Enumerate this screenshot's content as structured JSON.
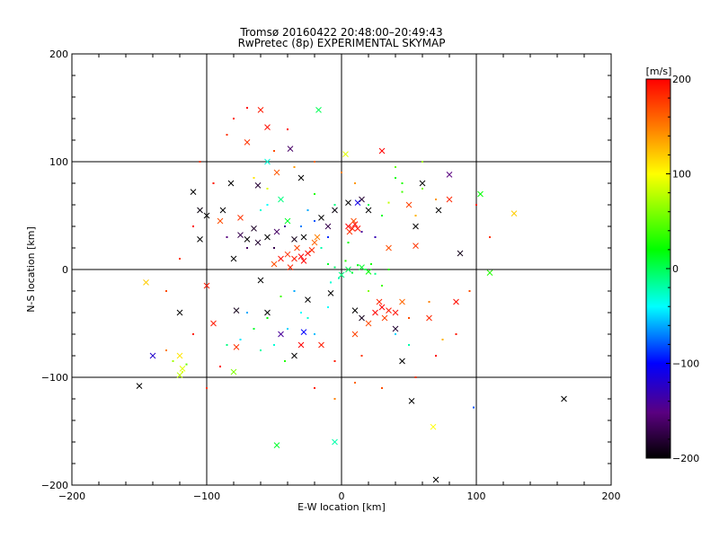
{
  "chart_data": {
    "type": "scatter",
    "title": "Tromsø 20160422 20:48:00–20:49:43",
    "subtitle": "RwPretec (8p) EXPERIMENTAL SKYMAP",
    "xlabel": "E-W location [km]",
    "ylabel": "N-S location [km]",
    "xlim": [
      -200,
      200
    ],
    "ylim": [
      -200,
      200
    ],
    "xticks": [
      "−200",
      "−100",
      "0",
      "100",
      "200"
    ],
    "yticks": [
      "−200",
      "−100",
      "0",
      "100",
      "200"
    ],
    "grid": true,
    "colorbar": {
      "label": "[m/s]",
      "range": [
        -200,
        200
      ],
      "ticks": [
        "−200",
        "−100",
        "0",
        "100",
        "200"
      ]
    },
    "points": [
      {
        "x": 5,
        "y": 40,
        "v": 200,
        "m": "x"
      },
      {
        "x": 8,
        "y": 38,
        "v": 190,
        "m": "x"
      },
      {
        "x": 10,
        "y": 42,
        "v": 200,
        "m": "x"
      },
      {
        "x": 6,
        "y": 35,
        "v": 180,
        "m": "x"
      },
      {
        "x": 12,
        "y": 38,
        "v": 195,
        "m": "x"
      },
      {
        "x": 9,
        "y": 45,
        "v": 170,
        "m": "x"
      },
      {
        "x": -25,
        "y": 15,
        "v": 195,
        "m": "x"
      },
      {
        "x": -30,
        "y": 12,
        "v": 200,
        "m": "x"
      },
      {
        "x": -22,
        "y": 18,
        "v": 185,
        "m": "x"
      },
      {
        "x": -35,
        "y": 10,
        "v": 190,
        "m": "x"
      },
      {
        "x": -28,
        "y": 8,
        "v": 200,
        "m": "x"
      },
      {
        "x": -40,
        "y": 14,
        "v": 180,
        "m": "x"
      },
      {
        "x": -45,
        "y": 10,
        "v": 195,
        "m": "x"
      },
      {
        "x": -33,
        "y": 20,
        "v": 175,
        "m": "x"
      },
      {
        "x": -20,
        "y": 25,
        "v": 160,
        "m": "x"
      },
      {
        "x": -18,
        "y": 30,
        "v": 150,
        "m": "x"
      },
      {
        "x": -50,
        "y": 5,
        "v": 170,
        "m": "x"
      },
      {
        "x": -38,
        "y": 2,
        "v": 185,
        "m": "x"
      },
      {
        "x": 30,
        "y": -35,
        "v": 200,
        "m": "x"
      },
      {
        "x": 35,
        "y": -38,
        "v": 190,
        "m": "x"
      },
      {
        "x": 28,
        "y": -30,
        "v": 185,
        "m": "x"
      },
      {
        "x": 40,
        "y": -40,
        "v": 195,
        "m": "x"
      },
      {
        "x": 32,
        "y": -45,
        "v": 175,
        "m": "x"
      },
      {
        "x": 25,
        "y": -40,
        "v": 200,
        "m": "x"
      },
      {
        "x": 45,
        "y": -30,
        "v": 160,
        "m": "x"
      },
      {
        "x": 20,
        "y": -50,
        "v": 170,
        "m": "x"
      },
      {
        "x": 15,
        "y": -45,
        "v": -190,
        "m": "x"
      },
      {
        "x": 10,
        "y": -38,
        "v": -200,
        "m": "x"
      },
      {
        "x": 40,
        "y": -55,
        "v": -180,
        "m": "x"
      },
      {
        "x": 45,
        "y": -85,
        "v": -200,
        "m": "x"
      },
      {
        "x": -28,
        "y": 30,
        "v": -200,
        "m": "x"
      },
      {
        "x": -35,
        "y": 28,
        "v": -190,
        "m": "x"
      },
      {
        "x": -55,
        "y": 30,
        "v": -200,
        "m": "x"
      },
      {
        "x": -62,
        "y": 25,
        "v": -180,
        "m": "x"
      },
      {
        "x": -70,
        "y": 28,
        "v": -200,
        "m": "x"
      },
      {
        "x": -75,
        "y": 32,
        "v": -170,
        "m": "x"
      },
      {
        "x": -65,
        "y": 38,
        "v": -185,
        "m": "x"
      },
      {
        "x": -48,
        "y": 35,
        "v": -160,
        "m": "x"
      },
      {
        "x": -80,
        "y": 10,
        "v": -200,
        "m": "x"
      },
      {
        "x": -100,
        "y": 50,
        "v": -200,
        "m": "x"
      },
      {
        "x": -110,
        "y": 72,
        "v": -200,
        "m": "x"
      },
      {
        "x": -105,
        "y": 55,
        "v": -195,
        "m": "x"
      },
      {
        "x": -105,
        "y": 28,
        "v": -200,
        "m": "x"
      },
      {
        "x": -82,
        "y": 80,
        "v": -200,
        "m": "x"
      },
      {
        "x": -62,
        "y": 78,
        "v": -180,
        "m": "x"
      },
      {
        "x": -30,
        "y": 85,
        "v": -200,
        "m": "x"
      },
      {
        "x": -38,
        "y": 112,
        "v": -160,
        "m": "x"
      },
      {
        "x": -150,
        "y": -108,
        "v": -200,
        "m": "x"
      },
      {
        "x": -120,
        "y": -40,
        "v": -200,
        "m": "x"
      },
      {
        "x": -78,
        "y": -38,
        "v": -190,
        "m": "x"
      },
      {
        "x": 52,
        "y": -122,
        "v": -200,
        "m": "x"
      },
      {
        "x": 165,
        "y": -120,
        "v": -200,
        "m": "x"
      },
      {
        "x": 70,
        "y": -195,
        "v": -200,
        "m": "x"
      },
      {
        "x": 72,
        "y": 55,
        "v": -200,
        "m": "x"
      },
      {
        "x": 80,
        "y": 88,
        "v": -150,
        "m": "x"
      },
      {
        "x": 88,
        "y": 15,
        "v": -190,
        "m": "x"
      },
      {
        "x": 5,
        "y": 62,
        "v": -200,
        "m": "x"
      },
      {
        "x": 20,
        "y": 55,
        "v": -200,
        "m": "x"
      },
      {
        "x": 15,
        "y": 65,
        "v": -180,
        "m": "x"
      },
      {
        "x": -10,
        "y": 40,
        "v": -170,
        "m": "x"
      },
      {
        "x": -15,
        "y": 48,
        "v": -200,
        "m": "x"
      },
      {
        "x": -5,
        "y": 55,
        "v": -195,
        "m": "x"
      },
      {
        "x": -35,
        "y": -80,
        "v": -200,
        "m": "x"
      },
      {
        "x": -55,
        "y": -40,
        "v": -200,
        "m": "x"
      },
      {
        "x": -45,
        "y": -60,
        "v": -140,
        "m": "x"
      },
      {
        "x": -140,
        "y": -80,
        "v": -120,
        "m": "x"
      },
      {
        "x": -28,
        "y": -58,
        "v": -100,
        "m": "x"
      },
      {
        "x": 12,
        "y": 62,
        "v": -110,
        "m": "x"
      },
      {
        "x": -60,
        "y": 148,
        "v": 190,
        "m": "x"
      },
      {
        "x": -70,
        "y": 118,
        "v": 180,
        "m": "x"
      },
      {
        "x": -55,
        "y": 132,
        "v": 195,
        "m": "x"
      },
      {
        "x": 30,
        "y": 110,
        "v": 200,
        "m": "x"
      },
      {
        "x": -120,
        "y": -80,
        "v": 110,
        "m": "x"
      },
      {
        "x": -118,
        "y": -92,
        "v": 90,
        "m": "x"
      },
      {
        "x": -145,
        "y": -12,
        "v": 120,
        "m": "x"
      },
      {
        "x": 128,
        "y": 52,
        "v": 120,
        "m": "x"
      },
      {
        "x": 68,
        "y": -146,
        "v": 100,
        "m": "x"
      },
      {
        "x": 3,
        "y": 107,
        "v": 90,
        "m": "x"
      },
      {
        "x": -120,
        "y": -98,
        "v": 80,
        "m": "x"
      },
      {
        "x": -80,
        "y": -95,
        "v": 60,
        "m": "x"
      },
      {
        "x": -17,
        "y": 148,
        "v": 0,
        "m": "x"
      },
      {
        "x": -48,
        "y": -163,
        "v": 10,
        "m": "x"
      },
      {
        "x": 103,
        "y": 70,
        "v": 20,
        "m": "x"
      },
      {
        "x": 110,
        "y": -3,
        "v": 30,
        "m": "x"
      },
      {
        "x": -5,
        "y": -160,
        "v": -20,
        "m": "x"
      },
      {
        "x": 5,
        "y": 0,
        "v": 0,
        "m": "x"
      },
      {
        "x": 15,
        "y": 2,
        "v": 10,
        "m": "x"
      },
      {
        "x": 20,
        "y": -2,
        "v": 20,
        "m": "x"
      },
      {
        "x": 0,
        "y": -5,
        "v": -10,
        "m": "x"
      },
      {
        "x": -40,
        "y": 45,
        "v": 10,
        "m": "x"
      },
      {
        "x": -45,
        "y": 65,
        "v": -10,
        "m": "x"
      },
      {
        "x": -55,
        "y": 100,
        "v": -30,
        "m": "x"
      },
      {
        "x": -25,
        "y": -28,
        "v": -200,
        "m": "x"
      },
      {
        "x": -8,
        "y": -22,
        "v": -200,
        "m": "x"
      },
      {
        "x": -60,
        "y": -10,
        "v": -200,
        "m": "x"
      },
      {
        "x": -88,
        "y": 55,
        "v": -200,
        "m": "x"
      },
      {
        "x": 55,
        "y": 40,
        "v": -200,
        "m": "x"
      },
      {
        "x": 60,
        "y": 80,
        "v": -200,
        "m": "x"
      },
      {
        "x": -95,
        "y": -50,
        "v": 190,
        "m": "x"
      },
      {
        "x": -78,
        "y": -72,
        "v": 180,
        "m": "x"
      },
      {
        "x": -15,
        "y": -70,
        "v": 190,
        "m": "x"
      },
      {
        "x": -30,
        "y": -70,
        "v": 200,
        "m": "x"
      },
      {
        "x": 10,
        "y": -60,
        "v": 175,
        "m": "x"
      },
      {
        "x": 65,
        "y": -45,
        "v": 185,
        "m": "x"
      },
      {
        "x": 85,
        "y": -30,
        "v": 195,
        "m": "x"
      },
      {
        "x": 55,
        "y": 22,
        "v": 180,
        "m": "x"
      },
      {
        "x": 35,
        "y": 20,
        "v": 170,
        "m": "x"
      },
      {
        "x": -100,
        "y": -15,
        "v": 190,
        "m": "x"
      },
      {
        "x": -75,
        "y": 48,
        "v": 180,
        "m": "x"
      },
      {
        "x": -90,
        "y": 45,
        "v": 170,
        "m": "x"
      },
      {
        "x": -48,
        "y": 90,
        "v": 165,
        "m": "x"
      },
      {
        "x": 50,
        "y": 60,
        "v": 175,
        "m": "x"
      },
      {
        "x": 80,
        "y": 65,
        "v": 185,
        "m": "x"
      },
      {
        "x": -10,
        "y": 5,
        "v": 10,
        "m": "."
      },
      {
        "x": -5,
        "y": 2,
        "v": -5,
        "m": "."
      },
      {
        "x": 8,
        "y": -3,
        "v": 5,
        "m": "."
      },
      {
        "x": 12,
        "y": 4,
        "v": 15,
        "m": "."
      },
      {
        "x": 18,
        "y": 0,
        "v": 0,
        "m": "."
      },
      {
        "x": -2,
        "y": -8,
        "v": -20,
        "m": "."
      },
      {
        "x": 22,
        "y": 5,
        "v": 25,
        "m": "."
      },
      {
        "x": 25,
        "y": -4,
        "v": -10,
        "m": "."
      },
      {
        "x": -8,
        "y": -12,
        "v": -30,
        "m": "."
      },
      {
        "x": 3,
        "y": 8,
        "v": 30,
        "m": "."
      },
      {
        "x": -30,
        "y": -40,
        "v": -40,
        "m": "."
      },
      {
        "x": -40,
        "y": -55,
        "v": -50,
        "m": "."
      },
      {
        "x": -50,
        "y": -70,
        "v": -30,
        "m": "."
      },
      {
        "x": -60,
        "y": -75,
        "v": -20,
        "m": "."
      },
      {
        "x": -75,
        "y": -65,
        "v": -45,
        "m": "."
      },
      {
        "x": -20,
        "y": -60,
        "v": -55,
        "m": "."
      },
      {
        "x": -55,
        "y": -45,
        "v": 20,
        "m": "."
      },
      {
        "x": -42,
        "y": -85,
        "v": 30,
        "m": "."
      },
      {
        "x": 60,
        "y": 75,
        "v": 60,
        "m": "."
      },
      {
        "x": 45,
        "y": 72,
        "v": 40,
        "m": "."
      },
      {
        "x": 40,
        "y": 85,
        "v": 20,
        "m": "."
      },
      {
        "x": 35,
        "y": 62,
        "v": 80,
        "m": "."
      },
      {
        "x": 55,
        "y": 50,
        "v": 130,
        "m": "."
      },
      {
        "x": 70,
        "y": 65,
        "v": 140,
        "m": "."
      },
      {
        "x": -30,
        "y": 40,
        "v": -70,
        "m": "."
      },
      {
        "x": -25,
        "y": 55,
        "v": -60,
        "m": "."
      },
      {
        "x": -20,
        "y": 45,
        "v": -80,
        "m": "."
      },
      {
        "x": -10,
        "y": 30,
        "v": -90,
        "m": "."
      },
      {
        "x": -55,
        "y": 60,
        "v": -40,
        "m": "."
      },
      {
        "x": -60,
        "y": 55,
        "v": -30,
        "m": "."
      },
      {
        "x": -70,
        "y": 20,
        "v": -160,
        "m": "."
      },
      {
        "x": -85,
        "y": 30,
        "v": -150,
        "m": "."
      },
      {
        "x": -50,
        "y": 20,
        "v": -170,
        "m": "."
      },
      {
        "x": -42,
        "y": 40,
        "v": -140,
        "m": "."
      },
      {
        "x": 15,
        "y": 35,
        "v": -140,
        "m": "."
      },
      {
        "x": 25,
        "y": 30,
        "v": -130,
        "m": "."
      },
      {
        "x": -125,
        "y": -85,
        "v": 70,
        "m": "."
      },
      {
        "x": -115,
        "y": -88,
        "v": 50,
        "m": "."
      },
      {
        "x": -118,
        "y": -95,
        "v": 90,
        "m": "."
      },
      {
        "x": -130,
        "y": -75,
        "v": 150,
        "m": "."
      },
      {
        "x": -70,
        "y": 150,
        "v": 200,
        "m": "."
      },
      {
        "x": -80,
        "y": 140,
        "v": 190,
        "m": "."
      },
      {
        "x": -85,
        "y": 125,
        "v": 180,
        "m": "."
      },
      {
        "x": -50,
        "y": 110,
        "v": 170,
        "m": "."
      },
      {
        "x": -40,
        "y": 130,
        "v": 200,
        "m": "."
      },
      {
        "x": -20,
        "y": 100,
        "v": 160,
        "m": "."
      },
      {
        "x": 0,
        "y": 90,
        "v": 150,
        "m": "."
      },
      {
        "x": 10,
        "y": 80,
        "v": 140,
        "m": "."
      },
      {
        "x": 100,
        "y": 60,
        "v": 190,
        "m": "."
      },
      {
        "x": 110,
        "y": 30,
        "v": 180,
        "m": "."
      },
      {
        "x": 95,
        "y": -20,
        "v": 170,
        "m": "."
      },
      {
        "x": 85,
        "y": -60,
        "v": 190,
        "m": "."
      },
      {
        "x": 70,
        "y": -80,
        "v": 200,
        "m": "."
      },
      {
        "x": 55,
        "y": -100,
        "v": 180,
        "m": "."
      },
      {
        "x": 30,
        "y": -110,
        "v": 170,
        "m": "."
      },
      {
        "x": 10,
        "y": -105,
        "v": 160,
        "m": "."
      },
      {
        "x": -5,
        "y": -120,
        "v": 150,
        "m": "."
      },
      {
        "x": -20,
        "y": -110,
        "v": 190,
        "m": "."
      },
      {
        "x": -100,
        "y": -110,
        "v": 180,
        "m": "."
      },
      {
        "x": -90,
        "y": -90,
        "v": 200,
        "m": "."
      },
      {
        "x": -110,
        "y": -60,
        "v": 190,
        "m": "."
      },
      {
        "x": -130,
        "y": -20,
        "v": 170,
        "m": "."
      },
      {
        "x": -120,
        "y": 10,
        "v": 180,
        "m": "."
      },
      {
        "x": -110,
        "y": 40,
        "v": 200,
        "m": "."
      },
      {
        "x": -95,
        "y": 80,
        "v": 190,
        "m": "."
      },
      {
        "x": -105,
        "y": 100,
        "v": 180,
        "m": "."
      },
      {
        "x": 20,
        "y": 60,
        "v": 0,
        "m": "."
      },
      {
        "x": 30,
        "y": 50,
        "v": 10,
        "m": "."
      },
      {
        "x": -5,
        "y": 60,
        "v": -10,
        "m": "."
      },
      {
        "x": 5,
        "y": 25,
        "v": 20,
        "m": "."
      },
      {
        "x": -15,
        "y": 20,
        "v": -20,
        "m": "."
      },
      {
        "x": -35,
        "y": -20,
        "v": -60,
        "m": "."
      },
      {
        "x": -25,
        "y": -45,
        "v": -30,
        "m": "."
      },
      {
        "x": -10,
        "y": -35,
        "v": -40,
        "m": "."
      },
      {
        "x": 40,
        "y": -60,
        "v": -50,
        "m": "."
      },
      {
        "x": 50,
        "y": -70,
        "v": -20,
        "m": "."
      },
      {
        "x": 98,
        "y": -128,
        "v": -80,
        "m": "."
      },
      {
        "x": 60,
        "y": 100,
        "v": 70,
        "m": "."
      },
      {
        "x": 40,
        "y": 95,
        "v": 50,
        "m": "."
      },
      {
        "x": 45,
        "y": 80,
        "v": 30,
        "m": "."
      },
      {
        "x": -45,
        "y": -25,
        "v": 40,
        "m": "."
      },
      {
        "x": -65,
        "y": -55,
        "v": 10,
        "m": "."
      },
      {
        "x": -85,
        "y": -70,
        "v": -10,
        "m": "."
      },
      {
        "x": -70,
        "y": -40,
        "v": -60,
        "m": "."
      },
      {
        "x": 20,
        "y": -20,
        "v": 60,
        "m": "."
      },
      {
        "x": 30,
        "y": -15,
        "v": 40,
        "m": "."
      },
      {
        "x": 35,
        "y": 0,
        "v": 30,
        "m": "."
      },
      {
        "x": -55,
        "y": 75,
        "v": 90,
        "m": "."
      },
      {
        "x": -65,
        "y": 85,
        "v": 110,
        "m": "."
      },
      {
        "x": -20,
        "y": 70,
        "v": 30,
        "m": "."
      },
      {
        "x": -35,
        "y": 95,
        "v": 140,
        "m": "."
      },
      {
        "x": 75,
        "y": -65,
        "v": 130,
        "m": "."
      },
      {
        "x": 65,
        "y": -30,
        "v": 150,
        "m": "."
      },
      {
        "x": 50,
        "y": -45,
        "v": 170,
        "m": "."
      },
      {
        "x": 15,
        "y": -80,
        "v": 180,
        "m": "."
      },
      {
        "x": -5,
        "y": -85,
        "v": 190,
        "m": "."
      }
    ]
  }
}
